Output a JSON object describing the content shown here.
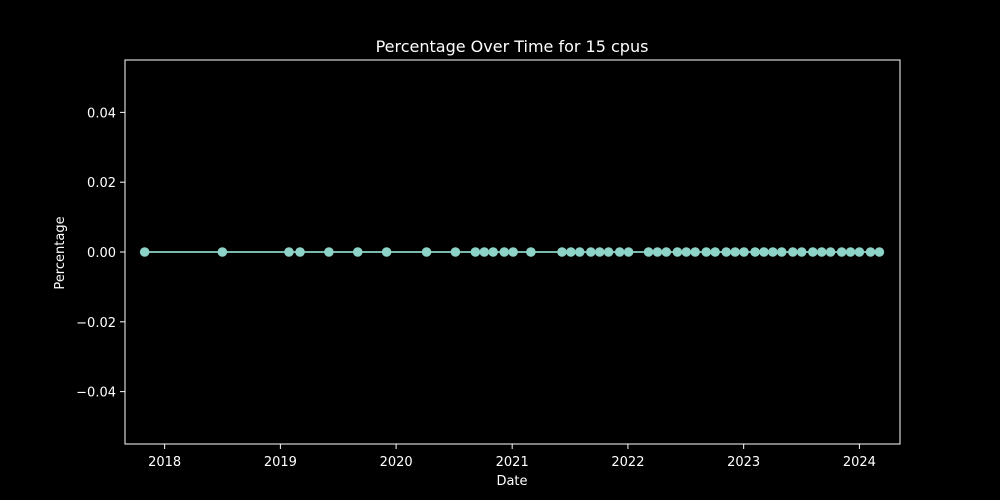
{
  "chart_data": {
    "type": "line",
    "title": "Percentage Over Time for 15 cpus",
    "xlabel": "Date",
    "ylabel": "Percentage",
    "ylim": [
      -0.055,
      0.055
    ],
    "xlim": [
      "2017-08-29",
      "2024-05-08"
    ],
    "yticks": [
      -0.04,
      -0.02,
      0.0,
      0.02,
      0.04
    ],
    "ytick_labels": [
      "−0.04",
      "−0.02",
      "0.00",
      "0.02",
      "0.04"
    ],
    "xticks": [
      "2018-01-01",
      "2019-01-01",
      "2020-01-01",
      "2021-01-01",
      "2022-01-01",
      "2023-01-01",
      "2024-01-01"
    ],
    "xtick_labels": [
      "2018",
      "2019",
      "2020",
      "2021",
      "2022",
      "2023",
      "2024"
    ],
    "grid": false,
    "line_color": "#8dd3c7",
    "background": "#000000",
    "series": [
      {
        "x": [
          "2017-10-30",
          "2018-07-02",
          "2019-01-28",
          "2019-03-04",
          "2019-06-03",
          "2019-09-02",
          "2019-12-02",
          "2020-04-06",
          "2020-07-06",
          "2020-09-07",
          "2020-10-05",
          "2020-11-02",
          "2020-12-07",
          "2021-01-04",
          "2021-03-01",
          "2021-06-07",
          "2021-07-05",
          "2021-08-02",
          "2021-09-06",
          "2021-10-04",
          "2021-11-01",
          "2021-12-06",
          "2022-01-03",
          "2022-03-07",
          "2022-04-04",
          "2022-05-02",
          "2022-06-06",
          "2022-07-04",
          "2022-08-01",
          "2022-09-05",
          "2022-10-03",
          "2022-11-07",
          "2022-12-05",
          "2023-01-02",
          "2023-02-06",
          "2023-03-06",
          "2023-04-03",
          "2023-05-01",
          "2023-06-05",
          "2023-07-03",
          "2023-08-07",
          "2023-09-04",
          "2023-10-02",
          "2023-11-06",
          "2023-12-04",
          "2024-01-01",
          "2024-02-05",
          "2024-03-04"
        ],
        "y": [
          0,
          0,
          0,
          0,
          0,
          0,
          0,
          0,
          0,
          0,
          0,
          0,
          0,
          0,
          0,
          0,
          0,
          0,
          0,
          0,
          0,
          0,
          0,
          0,
          0,
          0,
          0,
          0,
          0,
          0,
          0,
          0,
          0,
          0,
          0,
          0,
          0,
          0,
          0,
          0,
          0,
          0,
          0,
          0,
          0,
          0,
          0,
          0
        ]
      }
    ]
  }
}
